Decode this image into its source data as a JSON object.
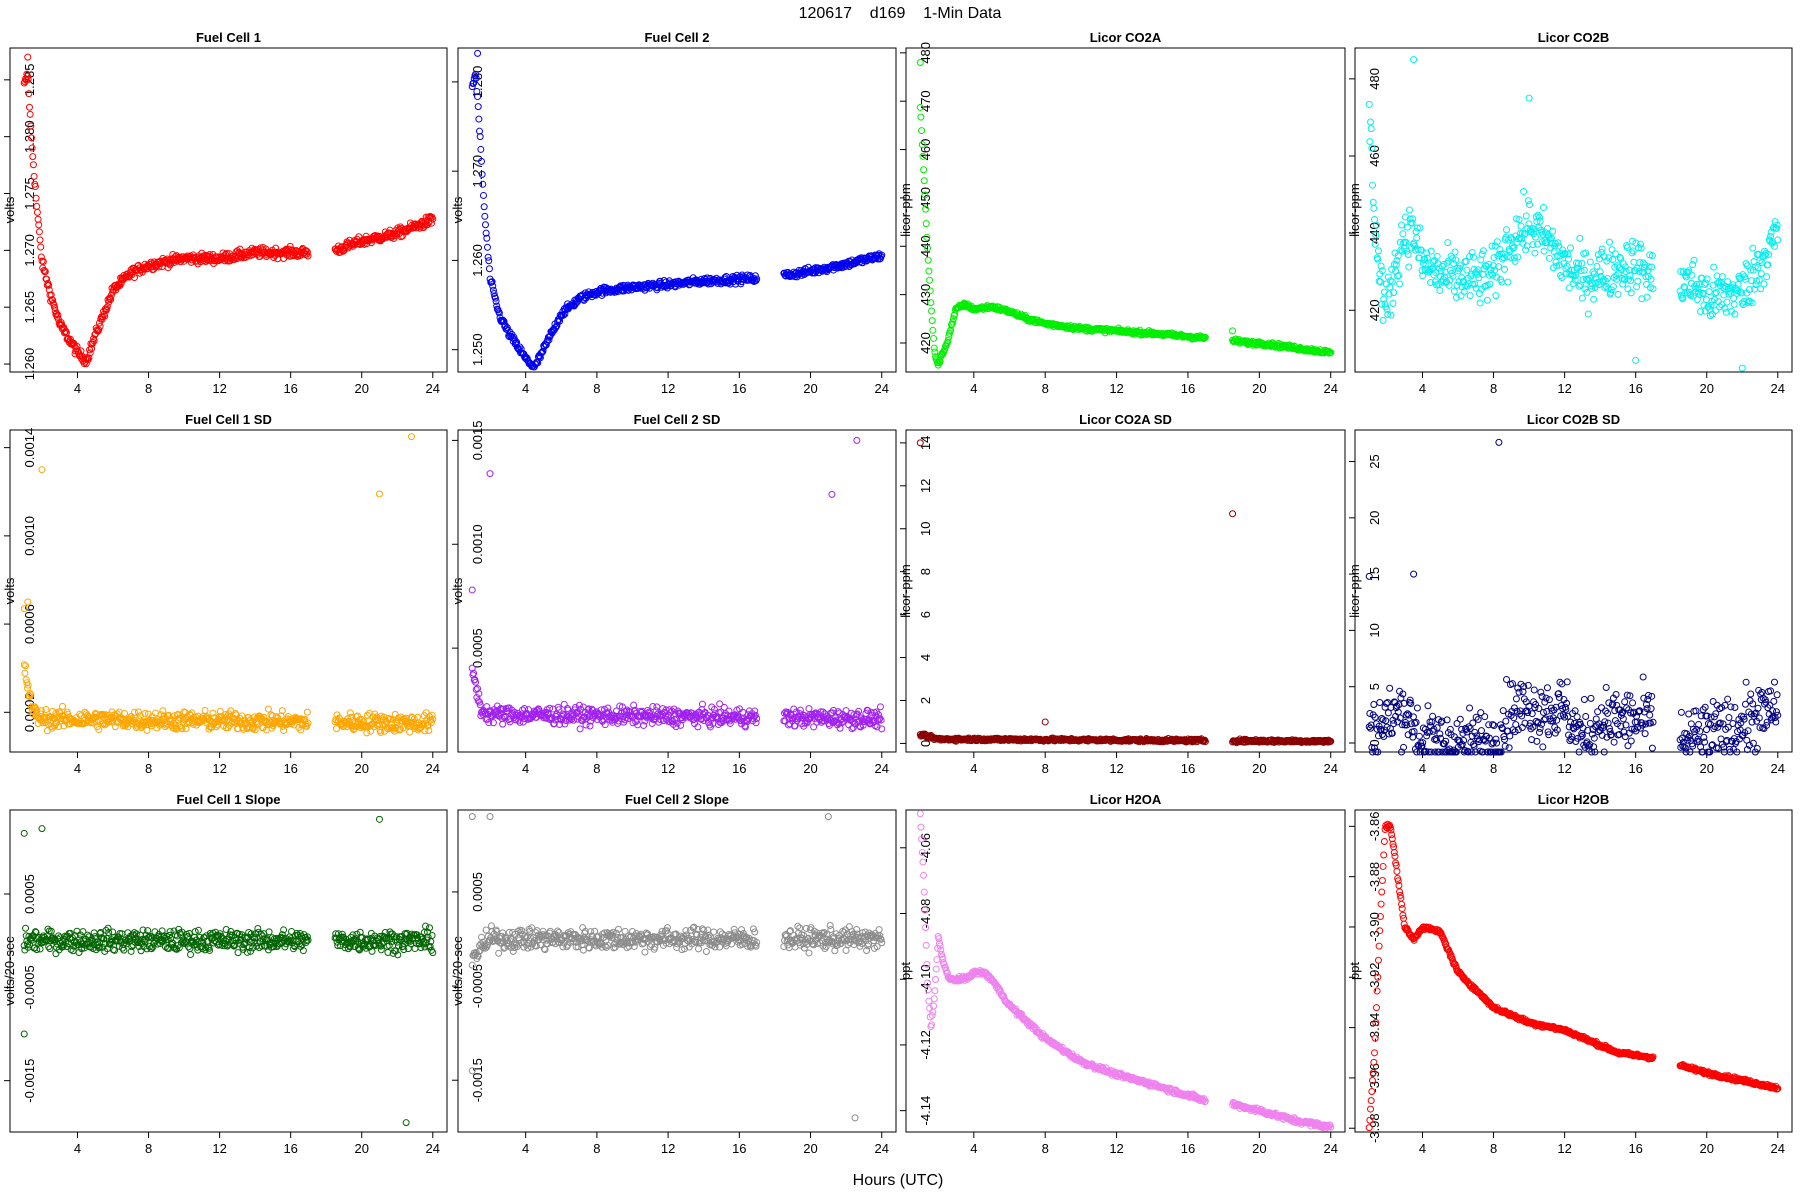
{
  "figure": {
    "title": "120617    d169    1-Min Data",
    "xlabel": "Hours (UTC)"
  },
  "chart_data": [
    {
      "type": "scatter",
      "title": "Fuel Cell 1",
      "ylabel": "volts",
      "color": "#ff0000",
      "xlim": [
        0.2,
        24.8
      ],
      "ylim": [
        1.2593,
        1.2878
      ],
      "xticks": [
        4,
        8,
        12,
        16,
        20,
        24
      ],
      "yticks": [
        1.26,
        1.265,
        1.27,
        1.275,
        1.28,
        1.285
      ],
      "ytick_labels": [
        "1.260",
        "1.265",
        "1.270",
        "1.275",
        "1.280",
        "1.285"
      ],
      "gap": [
        17,
        18.5
      ],
      "profile": [
        [
          1.0,
          1.2845
        ],
        [
          1.2,
          1.2855
        ],
        [
          1.4,
          1.28
        ],
        [
          1.7,
          1.274
        ],
        [
          2.0,
          1.269
        ],
        [
          2.5,
          1.266
        ],
        [
          3.0,
          1.2635
        ],
        [
          4.0,
          1.261
        ],
        [
          4.5,
          1.2603
        ],
        [
          5.0,
          1.2625
        ],
        [
          6.0,
          1.2665
        ],
        [
          7.0,
          1.268
        ],
        [
          8.0,
          1.2687
        ],
        [
          10.0,
          1.2693
        ],
        [
          12.0,
          1.2693
        ],
        [
          14.0,
          1.2698
        ],
        [
          17.0,
          1.2698
        ],
        [
          18.5,
          1.27
        ],
        [
          20.0,
          1.2708
        ],
        [
          22.0,
          1.2715
        ],
        [
          24.0,
          1.2727
        ]
      ],
      "outliers": [
        [
          1.2,
          1.287
        ]
      ],
      "noise": 0.0003
    },
    {
      "type": "scatter",
      "title": "Fuel Cell 2",
      "ylabel": "volts",
      "color": "#0000ee",
      "xlim": [
        0.2,
        24.8
      ],
      "ylim": [
        1.2475,
        1.2838
      ],
      "xticks": [
        4,
        8,
        12,
        16,
        20,
        24
      ],
      "yticks": [
        1.25,
        1.26,
        1.27,
        1.28
      ],
      "ytick_labels": [
        "1.250",
        "1.260",
        "1.270",
        "1.280"
      ],
      "gap": [
        17,
        18.5
      ],
      "profile": [
        [
          1.0,
          1.2795
        ],
        [
          1.2,
          1.281
        ],
        [
          1.4,
          1.275
        ],
        [
          1.7,
          1.265
        ],
        [
          2.0,
          1.258
        ],
        [
          2.5,
          1.254
        ],
        [
          3.0,
          1.252
        ],
        [
          4.0,
          1.249
        ],
        [
          4.5,
          1.248
        ],
        [
          5.0,
          1.25
        ],
        [
          6.0,
          1.254
        ],
        [
          7.0,
          1.2557
        ],
        [
          8.0,
          1.2565
        ],
        [
          10.0,
          1.257
        ],
        [
          12.0,
          1.2573
        ],
        [
          14.0,
          1.2577
        ],
        [
          17.0,
          1.258
        ],
        [
          18.5,
          1.2583
        ],
        [
          20.0,
          1.2588
        ],
        [
          22.0,
          1.2596
        ],
        [
          24.0,
          1.2605
        ]
      ],
      "outliers": [
        [
          1.3,
          1.2832
        ]
      ],
      "noise": 0.0003
    },
    {
      "type": "scatter",
      "title": "Licor CO2A",
      "ylabel": "licor-ppm",
      "color": "#00ee00",
      "xlim": [
        0.2,
        24.8
      ],
      "ylim": [
        414,
        481
      ],
      "xticks": [
        4,
        8,
        12,
        16,
        20,
        24
      ],
      "yticks": [
        420,
        430,
        440,
        450,
        460,
        470,
        480
      ],
      "ytick_labels": [
        "420",
        "430",
        "440",
        "450",
        "460",
        "470",
        "480"
      ],
      "gap": [
        17,
        18.5
      ],
      "profile": [
        [
          1.0,
          469
        ],
        [
          1.2,
          455
        ],
        [
          1.4,
          440
        ],
        [
          1.6,
          428
        ],
        [
          1.8,
          418
        ],
        [
          2.0,
          415.5
        ],
        [
          2.5,
          420
        ],
        [
          3.0,
          427
        ],
        [
          3.5,
          428
        ],
        [
          4.0,
          427
        ],
        [
          5.0,
          427.5
        ],
        [
          6.0,
          426.5
        ],
        [
          7.0,
          425
        ],
        [
          8.0,
          424
        ],
        [
          10.0,
          423
        ],
        [
          12.0,
          422.5
        ],
        [
          14.0,
          422
        ],
        [
          17.0,
          421
        ],
        [
          18.5,
          420.5
        ],
        [
          19.5,
          420
        ],
        [
          20.0,
          420
        ],
        [
          22.0,
          419
        ],
        [
          24.0,
          418
        ]
      ],
      "outliers": [
        [
          1.0,
          478
        ],
        [
          18.5,
          422.5
        ]
      ],
      "noise": 0.3
    },
    {
      "type": "scatter",
      "title": "Licor CO2B",
      "ylabel": "licor-ppm",
      "color": "#00eeee",
      "xlim": [
        0.2,
        24.8
      ],
      "ylim": [
        404,
        488
      ],
      "xticks": [
        4,
        8,
        12,
        16,
        20,
        24
      ],
      "yticks": [
        420,
        440,
        460,
        480
      ],
      "ytick_labels": [
        "420",
        "440",
        "460",
        "480"
      ],
      "gap": [
        17,
        18.5
      ],
      "profile": [
        [
          1.0,
          472
        ],
        [
          1.3,
          445
        ],
        [
          1.6,
          428
        ],
        [
          2.0,
          420
        ],
        [
          2.5,
          432
        ],
        [
          3.0,
          440
        ],
        [
          3.5,
          440
        ],
        [
          4.0,
          432
        ],
        [
          5.0,
          429
        ],
        [
          7.0,
          428
        ],
        [
          8.0,
          429
        ],
        [
          9.0,
          438
        ],
        [
          10.0,
          442
        ],
        [
          11.0,
          438
        ],
        [
          12.0,
          432
        ],
        [
          13.0,
          428
        ],
        [
          14.0,
          430
        ],
        [
          16.0,
          432
        ],
        [
          17.0,
          428
        ],
        [
          18.5,
          428
        ],
        [
          19.5,
          426
        ],
        [
          20.0,
          423
        ],
        [
          22.0,
          425
        ],
        [
          23.0,
          432
        ],
        [
          24.0,
          440
        ]
      ],
      "outliers": [
        [
          3.5,
          485
        ],
        [
          10.0,
          475
        ],
        [
          22.0,
          405
        ],
        [
          16.0,
          407
        ]
      ],
      "noise": 5
    },
    {
      "type": "scatter",
      "title": "Fuel Cell 1 SD",
      "ylabel": "volts",
      "color": "#ffa500",
      "xlim": [
        0.2,
        24.8
      ],
      "ylim": [
        2e-05,
        0.00148
      ],
      "xticks": [
        4,
        8,
        12,
        16,
        20,
        24
      ],
      "yticks": [
        0.0002,
        0.0006,
        0.001,
        0.0014
      ],
      "ytick_labels": [
        "0.0002",
        "0.0006",
        "0.0010",
        "0.0014"
      ],
      "gap": [
        17,
        18.5
      ],
      "profile": [
        [
          1.0,
          0.0004
        ],
        [
          1.5,
          0.0002
        ],
        [
          2.0,
          0.00017
        ],
        [
          24.0,
          0.00015
        ]
      ],
      "outliers": [
        [
          1.0,
          0.00067
        ],
        [
          1.2,
          0.0007
        ],
        [
          2.0,
          0.0013
        ],
        [
          22.8,
          0.00145
        ],
        [
          21.0,
          0.00119
        ]
      ],
      "noise": 3e-05
    },
    {
      "type": "scatter",
      "title": "Fuel Cell 2 SD",
      "ylabel": "volts",
      "color": "#a020f0",
      "xlim": [
        0.2,
        24.8
      ],
      "ylim": [
        0.0,
        0.00155
      ],
      "xticks": [
        4,
        8,
        12,
        16,
        20,
        24
      ],
      "yticks": [
        0.0005,
        0.001,
        0.0015
      ],
      "ytick_labels": [
        "0.0005",
        "0.0010",
        "0.0015"
      ],
      "gap": [
        17,
        18.5
      ],
      "profile": [
        [
          1.0,
          0.0004
        ],
        [
          1.5,
          0.0002
        ],
        [
          2.0,
          0.00018
        ],
        [
          24.0,
          0.00016
        ]
      ],
      "outliers": [
        [
          1.0,
          0.00078
        ],
        [
          2.0,
          0.00134
        ],
        [
          22.6,
          0.0015
        ],
        [
          21.2,
          0.00124
        ]
      ],
      "noise": 3e-05
    },
    {
      "type": "scatter",
      "title": "Licor CO2A SD",
      "ylabel": "licor-ppm",
      "color": "#8b0000",
      "xlim": [
        0.2,
        24.8
      ],
      "ylim": [
        -0.4,
        14.6
      ],
      "xticks": [
        4,
        8,
        12,
        16,
        20,
        24
      ],
      "yticks": [
        0,
        2,
        4,
        6,
        8,
        10,
        12,
        14
      ],
      "ytick_labels": [
        "0",
        "2",
        "4",
        "6",
        "8",
        "10",
        "12",
        "14"
      ],
      "gap": [
        17,
        18.5
      ],
      "profile": [
        [
          1.0,
          0.4
        ],
        [
          2.0,
          0.2
        ],
        [
          24.0,
          0.1
        ]
      ],
      "outliers": [
        [
          1.0,
          14.0
        ],
        [
          18.5,
          10.7
        ],
        [
          8.0,
          1.0
        ]
      ],
      "noise": 0.05
    },
    {
      "type": "scatter",
      "title": "Licor CO2B SD",
      "ylabel": "licor-ppm",
      "color": "#000080",
      "xlim": [
        0.2,
        24.8
      ],
      "ylim": [
        -0.8,
        27.8
      ],
      "xticks": [
        4,
        8,
        12,
        16,
        20,
        24
      ],
      "yticks": [
        0,
        5,
        10,
        15,
        20,
        25
      ],
      "ytick_labels": [
        "0",
        "5",
        "10",
        "15",
        "20",
        "25"
      ],
      "gap": [
        17,
        18.5
      ],
      "profile": [
        [
          1.0,
          1
        ],
        [
          3.0,
          3
        ],
        [
          4.0,
          0.1
        ],
        [
          8.0,
          0.1
        ],
        [
          9.0,
          3
        ],
        [
          12.0,
          3
        ],
        [
          13.0,
          0.3
        ],
        [
          14.0,
          2
        ],
        [
          17.0,
          2
        ],
        [
          18.5,
          0.2
        ],
        [
          21.0,
          1
        ],
        [
          24.0,
          3
        ]
      ],
      "outliers": [
        [
          8.3,
          26.7
        ],
        [
          1.0,
          14.8
        ],
        [
          3.5,
          15
        ]
      ],
      "noise": 2
    },
    {
      "type": "scatter",
      "title": "Fuel Cell 1 Slope",
      "ylabel": "volts/20-sec",
      "color": "#006400",
      "xlim": [
        0.2,
        24.8
      ],
      "ylim": [
        -0.00205,
        0.0014
      ],
      "xticks": [
        4,
        8,
        12,
        16,
        20,
        24
      ],
      "yticks": [
        -0.0015,
        -0.0005,
        0.0005
      ],
      "ytick_labels": [
        "-0.0015",
        "-0.0005",
        "0.0005"
      ],
      "gap": [
        17,
        18.5
      ],
      "profile": [
        [
          1.0,
          0.0
        ],
        [
          24.0,
          0.0
        ]
      ],
      "outliers": [
        [
          1.0,
          0.00115
        ],
        [
          2.0,
          0.0012
        ],
        [
          21.0,
          0.0013
        ],
        [
          1.0,
          -0.001
        ],
        [
          22.5,
          -0.00195
        ]
      ],
      "noise": 8e-05
    },
    {
      "type": "scatter",
      "title": "Fuel Cell 2 Slope",
      "ylabel": "volts/20-sec",
      "color": "#8c8c8c",
      "xlim": [
        0.2,
        24.8
      ],
      "ylim": [
        -0.00205,
        0.00137
      ],
      "xticks": [
        4,
        8,
        12,
        16,
        20,
        24
      ],
      "yticks": [
        -0.0015,
        -0.0005,
        0.0005
      ],
      "ytick_labels": [
        "-0.0015",
        "-0.0005",
        "0.0005"
      ],
      "gap": [
        17,
        18.5
      ],
      "profile": [
        [
          1.0,
          -0.0002
        ],
        [
          1.5,
          -0.0001
        ],
        [
          2.0,
          0.0
        ],
        [
          24.0,
          0.0
        ]
      ],
      "outliers": [
        [
          1.0,
          0.0013
        ],
        [
          2.0,
          0.0013
        ],
        [
          21.0,
          0.0013
        ],
        [
          1.0,
          -0.0014
        ],
        [
          22.5,
          -0.0019
        ]
      ],
      "noise": 8e-05
    },
    {
      "type": "scatter",
      "title": "Licor H2OA",
      "ylabel": "ppt",
      "color": "#ee82ee",
      "xlim": [
        0.2,
        24.8
      ],
      "ylim": [
        -4.1465,
        -4.0485
      ],
      "xticks": [
        4,
        8,
        12,
        16,
        20,
        24
      ],
      "yticks": [
        -4.14,
        -4.12,
        -4.1,
        -4.08,
        -4.06
      ],
      "ytick_labels": [
        "-4.14",
        "-4.12",
        "-4.10",
        "-4.08",
        "-4.06"
      ],
      "gap": [
        17,
        18.5
      ],
      "profile": [
        [
          1.0,
          -4.05
        ],
        [
          1.2,
          -4.07
        ],
        [
          1.4,
          -4.1
        ],
        [
          1.6,
          -4.115
        ],
        [
          1.8,
          -4.105
        ],
        [
          2.0,
          -4.087
        ],
        [
          2.3,
          -4.095
        ],
        [
          2.6,
          -4.1
        ],
        [
          3.5,
          -4.1
        ],
        [
          4.0,
          -4.098
        ],
        [
          4.6,
          -4.098
        ],
        [
          5.0,
          -4.1
        ],
        [
          6.0,
          -4.108
        ],
        [
          8.0,
          -4.118
        ],
        [
          10.0,
          -4.125
        ],
        [
          12.0,
          -4.129
        ],
        [
          14.0,
          -4.132
        ],
        [
          17.0,
          -4.137
        ],
        [
          18.5,
          -4.138
        ],
        [
          20.0,
          -4.14
        ],
        [
          22.0,
          -4.143
        ],
        [
          24.0,
          -4.145
        ]
      ],
      "outliers": [],
      "noise": 0.0005
    },
    {
      "type": "scatter",
      "title": "Licor H2OB",
      "ylabel": "ppt",
      "color": "#ff0000",
      "xlim": [
        0.2,
        24.8
      ],
      "ylim": [
        -3.9815,
        -3.8535
      ],
      "xticks": [
        4,
        8,
        12,
        16,
        20,
        24
      ],
      "yticks": [
        -3.98,
        -3.96,
        -3.94,
        -3.92,
        -3.9,
        -3.88,
        -3.86
      ],
      "ytick_labels": [
        "-3.98",
        "-3.96",
        "-3.94",
        "-3.92",
        "-3.90",
        "-3.88",
        "-3.86"
      ],
      "gap": [
        17,
        18.5
      ],
      "profile": [
        [
          1.0,
          -3.98
        ],
        [
          1.3,
          -3.95
        ],
        [
          1.6,
          -3.9
        ],
        [
          1.9,
          -3.86
        ],
        [
          2.2,
          -3.86
        ],
        [
          2.6,
          -3.88
        ],
        [
          3.0,
          -3.9
        ],
        [
          3.5,
          -3.905
        ],
        [
          4.0,
          -3.9
        ],
        [
          5.0,
          -3.902
        ],
        [
          6.0,
          -3.918
        ],
        [
          7.0,
          -3.925
        ],
        [
          8.0,
          -3.932
        ],
        [
          10.0,
          -3.938
        ],
        [
          12.0,
          -3.941
        ],
        [
          14.0,
          -3.947
        ],
        [
          15.0,
          -3.95
        ],
        [
          17.0,
          -3.952
        ],
        [
          18.5,
          -3.955
        ],
        [
          20.0,
          -3.958
        ],
        [
          22.0,
          -3.961
        ],
        [
          24.0,
          -3.964
        ]
      ],
      "outliers": [],
      "noise": 0.0005
    }
  ]
}
